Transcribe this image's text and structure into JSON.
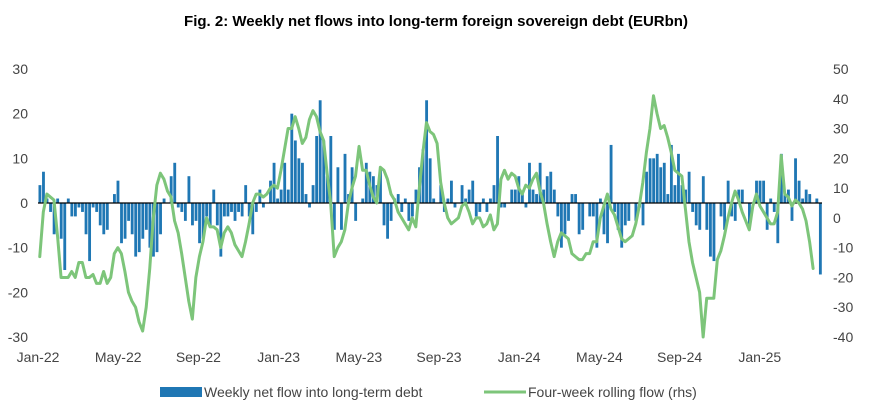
{
  "chart_data": {
    "type": "bar+line",
    "title": "Fig. 2: Weekly net flows into long-term foreign sovereign debt (EURbn)",
    "x_tick_labels": [
      "Jan-22",
      "May-22",
      "Sep-22",
      "Jan-23",
      "May-23",
      "Sep-23",
      "Jan-24",
      "May-24",
      "Sep-24",
      "Jan-25"
    ],
    "y_left": {
      "ticks": [
        "30",
        "20",
        "10",
        "0",
        "-10",
        "-20",
        "-30"
      ],
      "ylim": [
        -30,
        30
      ]
    },
    "y_right": {
      "ticks": [
        "50",
        "40",
        "30",
        "20",
        "10",
        "0",
        "-10",
        "-20",
        "-30",
        "-40"
      ],
      "ylim": [
        -40,
        50
      ]
    },
    "grid": false,
    "legend_position": "bottom",
    "series": [
      {
        "name": "Weekly net flow into long-term debt",
        "kind": "bar",
        "axis": "left",
        "color": "#1F77B4",
        "values": [
          4,
          7,
          1,
          -2,
          -7,
          1,
          -8,
          -15,
          1,
          -3,
          -3,
          -1,
          -2,
          -7,
          -13,
          -1,
          -2,
          -5,
          -7,
          -6,
          0,
          2,
          5,
          -9,
          -8,
          -4,
          -7,
          -12,
          -11,
          -8,
          -6,
          -10,
          -12,
          -11,
          -7,
          1,
          0,
          6,
          9,
          -1,
          -2,
          -4,
          6,
          -5,
          -4,
          -9,
          -8,
          -3,
          -5,
          3,
          -5,
          -12,
          -3,
          -3,
          -2,
          -4,
          -2,
          -3,
          4,
          -3,
          -7,
          -2,
          3,
          -1,
          0,
          5,
          9,
          1,
          3,
          9,
          3,
          20,
          14,
          10,
          9,
          2,
          -1,
          4,
          15,
          23,
          14,
          6,
          15,
          -6,
          8,
          -6,
          11,
          2,
          8,
          -4,
          0,
          1,
          9,
          7,
          6,
          4,
          8,
          -5,
          -8,
          -4,
          1,
          2,
          -2,
          1,
          -4,
          -3,
          3,
          8,
          12,
          23,
          10,
          1,
          0,
          4,
          -2,
          1,
          5,
          -1,
          0,
          4,
          1,
          3,
          5,
          -3,
          -2,
          1,
          -2,
          1,
          4,
          15,
          -1,
          -1,
          0,
          3,
          3,
          6,
          2,
          -1,
          9,
          3,
          2,
          9,
          3,
          6,
          7,
          3,
          -3,
          -10,
          -7,
          -4,
          2,
          2,
          -7,
          -6,
          0,
          -3,
          -3,
          -10,
          1,
          -7,
          -9,
          13,
          -2,
          -6,
          -10,
          -5,
          -4,
          0,
          -4,
          -1,
          -5,
          7,
          10,
          10,
          11,
          8,
          9,
          2,
          13,
          4,
          11,
          4,
          3,
          7,
          -2,
          -5,
          -6,
          6,
          -6,
          -12,
          -13,
          0,
          -3,
          -6,
          5,
          -3,
          -4,
          3,
          3,
          0,
          -5,
          0,
          5,
          5,
          5,
          -6,
          1,
          -2,
          -9,
          11,
          2,
          3,
          -4,
          10,
          5,
          1,
          3,
          2,
          0,
          1,
          -16
        ]
      },
      {
        "name": "Four-week rolling flow (rhs)",
        "kind": "line",
        "axis": "right",
        "color": "#7DC57A",
        "values": [
          -13,
          2,
          8,
          7,
          6,
          -6,
          -20,
          -20,
          -20,
          -18,
          -20,
          -15,
          -15,
          -20,
          -20,
          -19,
          -22,
          -22,
          -18,
          -22,
          -20,
          -12,
          -10,
          -12,
          -18,
          -25,
          -28,
          -30,
          -35,
          -38,
          -30,
          -17,
          0,
          11,
          15,
          13,
          9,
          7,
          -1,
          -5,
          -12,
          -20,
          -28,
          -34,
          -20,
          -13,
          -8,
          0,
          -3,
          -3,
          -4,
          -10,
          -5,
          -3,
          -5,
          -9,
          -11,
          -13,
          -8,
          -2,
          5,
          8,
          8,
          7,
          8,
          10,
          11,
          10,
          16,
          23,
          30,
          30,
          34,
          30,
          25,
          27,
          33,
          36,
          34,
          29,
          26,
          15,
          5,
          -13,
          -10,
          -8,
          -4,
          5,
          10,
          14,
          24,
          16,
          16,
          11,
          7,
          5,
          17,
          16,
          13,
          8,
          6,
          2,
          0,
          -2,
          -4,
          0,
          -3,
          10,
          22,
          32,
          29,
          28,
          25,
          12,
          5,
          0,
          -2,
          -1,
          0,
          4,
          5,
          2,
          -2,
          0,
          0,
          -3,
          -2,
          1,
          -4,
          -2,
          13,
          16,
          13,
          15,
          14,
          10,
          8,
          11,
          10,
          13,
          15,
          9,
          5,
          -2,
          -8,
          -13,
          -8,
          -5,
          -6,
          -7,
          -12,
          -13,
          -14,
          -14,
          -12,
          -12,
          -8,
          -8,
          0,
          4,
          8,
          3,
          1,
          -3,
          -7,
          -8,
          -7,
          -6,
          -2,
          4,
          12,
          22,
          30,
          41,
          35,
          30,
          31,
          27,
          22,
          16,
          15,
          14,
          3,
          -8,
          -15,
          -20,
          -25,
          -40,
          -27,
          -27,
          -27,
          -14,
          -11,
          -6,
          0,
          5,
          9,
          6,
          2,
          -1,
          -4,
          4,
          8,
          4,
          2,
          0,
          -2,
          -2,
          2,
          21,
          8,
          7,
          4,
          6,
          5,
          3,
          -1,
          -8,
          -17
        ]
      }
    ]
  }
}
